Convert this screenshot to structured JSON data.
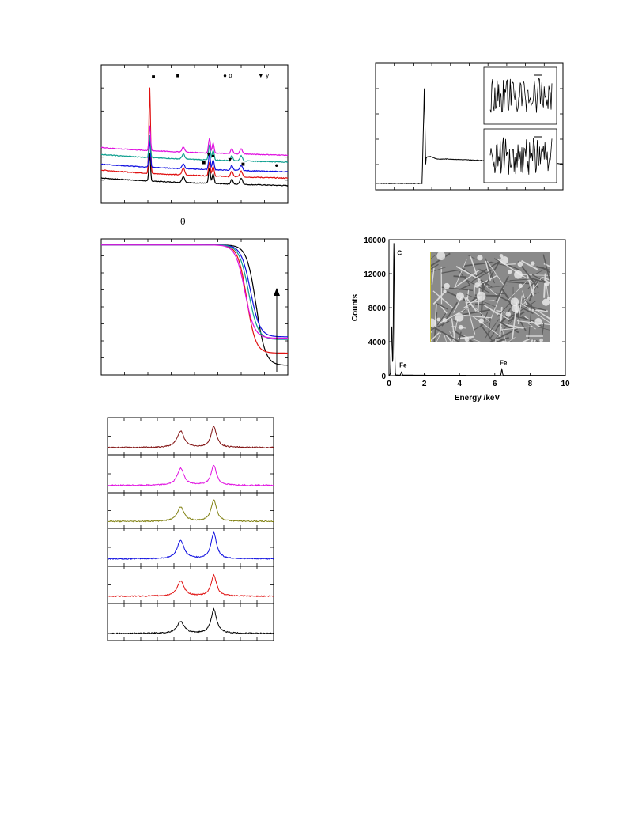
{
  "xrd_legend": {
    "alpha": "α",
    "gamma": "γ"
  },
  "xrd_axis_symbol": "θ",
  "colors": {
    "black": "#000000",
    "red": "#e01010",
    "blue": "#1010e0",
    "teal": "#10a090",
    "magenta": "#e010e0",
    "olive": "#808010",
    "darkred": "#801010"
  },
  "chart_data": [
    {
      "id": "xrd",
      "type": "line",
      "title": "",
      "xlabel": "θ",
      "ylabel": "",
      "legend": [
        "■",
        "● α",
        "▼ γ"
      ],
      "series": [
        {
          "color": "black",
          "offset": 0
        },
        {
          "color": "red",
          "offset": 1
        },
        {
          "color": "blue",
          "offset": 2
        },
        {
          "color": "teal",
          "offset": 3
        },
        {
          "color": "magenta",
          "offset": 4
        }
      ],
      "peaks": [
        {
          "x": 0.26,
          "h": [
            0.22,
            0.62,
            0.22,
            0.18,
            0.2
          ],
          "w": 0.006
        },
        {
          "x": 0.44,
          "h": [
            0.05,
            0.05,
            0.04,
            0.04,
            0.04
          ],
          "w": 0.01
        },
        {
          "x": 0.58,
          "h": [
            0.12,
            0.1,
            0.12,
            0.12,
            0.12
          ],
          "w": 0.007
        },
        {
          "x": 0.6,
          "h": [
            0.08,
            0.07,
            0.08,
            0.08,
            0.08
          ],
          "w": 0.007
        },
        {
          "x": 0.7,
          "h": [
            0.04,
            0.04,
            0.04,
            0.04,
            0.04
          ],
          "w": 0.008
        },
        {
          "x": 0.75,
          "h": [
            0.05,
            0.04,
            0.04,
            0.04,
            0.04
          ],
          "w": 0.01
        }
      ],
      "markers": [
        {
          "sym": "■",
          "x": 0.28,
          "y": 0.1
        },
        {
          "sym": "■",
          "x": 0.55,
          "y": 0.72
        },
        {
          "sym": "▼",
          "x": 0.575,
          "y": 0.66
        },
        {
          "sym": "●",
          "x": 0.6,
          "y": 0.67
        },
        {
          "sym": "▼",
          "x": 0.69,
          "y": 0.7
        },
        {
          "sym": "■",
          "x": 0.76,
          "y": 0.73
        },
        {
          "sym": "●",
          "x": 0.94,
          "y": 0.74
        }
      ]
    },
    {
      "id": "xps",
      "type": "line",
      "title": "",
      "xlabel": "",
      "ylabel": ""
    },
    {
      "id": "tga",
      "type": "line",
      "title": "",
      "xlabel": "",
      "ylabel": "",
      "series": [
        {
          "color": "black",
          "start": 0.68,
          "end": 0.92
        },
        {
          "color": "red",
          "start": 0.66,
          "end": 0.82
        },
        {
          "color": "blue",
          "start": 0.7,
          "end": 0.7
        },
        {
          "color": "teal",
          "start": 0.69,
          "end": 0.72
        },
        {
          "color": "magenta",
          "start": 0.65,
          "end": 0.74
        }
      ]
    },
    {
      "id": "eds",
      "type": "line",
      "title": "",
      "xlabel": "Energy /keV",
      "ylabel": "Counts",
      "xlim": [
        0,
        10
      ],
      "ylim": [
        0,
        16000
      ],
      "xticks": [
        "0",
        "2",
        "4",
        "6",
        "8",
        "10"
      ],
      "yticks": [
        "0",
        "4000",
        "8000",
        "12000",
        "16000"
      ],
      "peaks": [
        {
          "x": 0.15,
          "y": 6000,
          "label": ""
        },
        {
          "x": 0.28,
          "y": 15500,
          "label": "C"
        },
        {
          "x": 0.71,
          "y": 400,
          "label": "Fe"
        },
        {
          "x": 6.4,
          "y": 700,
          "label": "Fe"
        }
      ]
    },
    {
      "id": "raman",
      "type": "line",
      "title": "",
      "xlabel": "",
      "ylabel": "",
      "series": [
        {
          "color": "darkred",
          "d": 0.55,
          "g": 0.7
        },
        {
          "color": "magenta",
          "d": 0.55,
          "g": 0.65
        },
        {
          "color": "olive",
          "d": 0.5,
          "g": 0.75
        },
        {
          "color": "blue",
          "d": 0.6,
          "g": 0.85
        },
        {
          "color": "red",
          "d": 0.5,
          "g": 0.7
        },
        {
          "color": "black",
          "d": 0.4,
          "g": 0.8
        }
      ]
    }
  ]
}
